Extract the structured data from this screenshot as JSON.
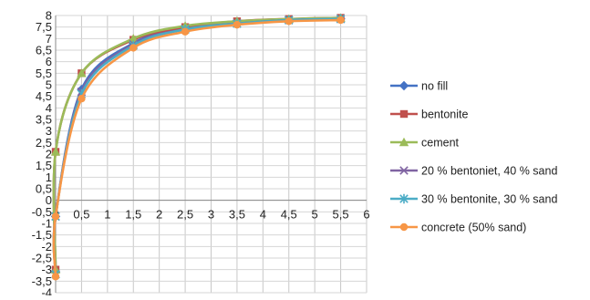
{
  "chart_data": {
    "type": "line",
    "title": "",
    "xlabel": "",
    "ylabel": "",
    "xlim": [
      0,
      6
    ],
    "ylim": [
      -4,
      8
    ],
    "xticks": [
      "0",
      "0,5",
      "1",
      "1,5",
      "2",
      "2,5",
      "3",
      "3,5",
      "4",
      "4,5",
      "5",
      "5,5",
      "6"
    ],
    "yticks": [
      "-4",
      "-3,5",
      "-3",
      "-2,5",
      "-2",
      "-1,5",
      "-1",
      "-0,5",
      "0",
      "0,5",
      "1",
      "1,5",
      "2",
      "2,5",
      "3",
      "3,5",
      "4",
      "4,5",
      "5",
      "5,5",
      "6",
      "6,5",
      "7",
      "7,5",
      "8"
    ],
    "grid": true,
    "legend_position": "right",
    "series": [
      {
        "name": "no fill",
        "color": "#4472C4",
        "marker": "diamond",
        "x": [
          0,
          0,
          0.5,
          1.5,
          2.5,
          3.5,
          4.5,
          5.5
        ],
        "y": [
          -3.1,
          -0.7,
          4.8,
          6.8,
          7.45,
          7.7,
          7.8,
          7.85
        ]
      },
      {
        "name": "bentonite",
        "color": "#C0504D",
        "marker": "square",
        "x": [
          0,
          0,
          0.5,
          1.5,
          2.5,
          3.5,
          4.5,
          5.5
        ],
        "y": [
          -3.0,
          2.1,
          5.5,
          6.95,
          7.5,
          7.75,
          7.85,
          7.9
        ]
      },
      {
        "name": "cement",
        "color": "#9BBB59",
        "marker": "triangle",
        "x": [
          0,
          0,
          0.5,
          1.5,
          2.5,
          3.5,
          4.5,
          5.5
        ],
        "y": [
          -3.0,
          2.1,
          5.5,
          7.0,
          7.55,
          7.75,
          7.85,
          7.9
        ]
      },
      {
        "name": "20 % bentoniet, 40 % sand",
        "color": "#8064A2",
        "marker": "x",
        "x": [
          0,
          0,
          0.5,
          1.5,
          2.5,
          3.5,
          4.5,
          5.5
        ],
        "y": [
          -3.2,
          -0.7,
          4.7,
          6.75,
          7.4,
          7.65,
          7.8,
          7.85
        ]
      },
      {
        "name": "30 % bentonite, 30 % sand",
        "color": "#4BACC6",
        "marker": "star",
        "x": [
          0,
          0,
          0.5,
          1.5,
          2.5,
          3.5,
          4.5,
          5.5
        ],
        "y": [
          -3.2,
          -0.7,
          4.6,
          6.7,
          7.4,
          7.65,
          7.8,
          7.85
        ]
      },
      {
        "name": "concrete (50% sand)",
        "color": "#F79646",
        "marker": "circle",
        "x": [
          0,
          0,
          0.5,
          1.5,
          2.5,
          3.5,
          4.5,
          5.5
        ],
        "y": [
          -3.3,
          -0.7,
          4.4,
          6.6,
          7.3,
          7.6,
          7.75,
          7.8
        ]
      }
    ]
  }
}
